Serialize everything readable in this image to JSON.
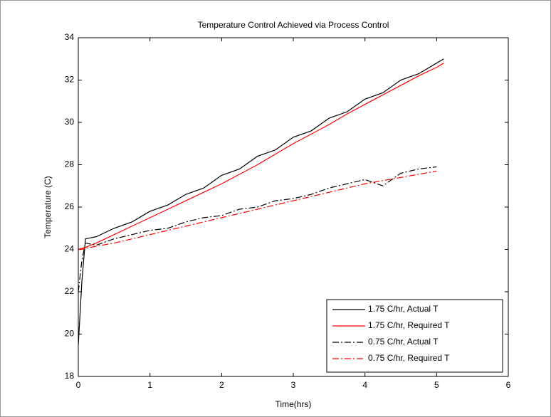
{
  "chart_data": {
    "type": "line",
    "title": "Temperature Control Achieved via Process Control",
    "x_label": "Time(hrs)",
    "y_label": "Temperature (C)",
    "x": [
      0,
      0.05,
      0.1,
      0.25,
      0.5,
      0.75,
      1,
      1.25,
      1.5,
      1.75,
      2,
      2.25,
      2.5,
      2.75,
      3,
      3.25,
      3.5,
      3.75,
      4,
      4.25,
      4.5,
      4.75,
      5,
      5.1
    ],
    "series": [
      {
        "name": "1.75 C/hr, Actual T",
        "color": "#000000",
        "style": "-",
        "values": [
          19.5,
          22.5,
          24.5,
          24.6,
          25.0,
          25.3,
          25.8,
          26.1,
          26.6,
          26.9,
          27.5,
          27.8,
          28.4,
          28.7,
          29.3,
          29.6,
          30.2,
          30.5,
          31.1,
          31.4,
          32.0,
          32.3,
          32.8,
          33.0
        ]
      },
      {
        "name": "1.75 C/hr, Required T",
        "color": "#ff0000",
        "style": "-",
        "values": [
          24.0,
          24.05,
          24.1,
          24.3,
          24.7,
          25.1,
          25.5,
          25.9,
          26.3,
          26.7,
          27.1,
          27.55,
          28.0,
          28.5,
          29.0,
          29.45,
          29.9,
          30.4,
          30.85,
          31.3,
          31.75,
          32.2,
          32.6,
          32.8
        ]
      },
      {
        "name": "0.75 C/hr, Actual T",
        "color": "#000000",
        "style": "-.",
        "values": [
          22.0,
          23.5,
          24.3,
          24.2,
          24.5,
          24.7,
          24.9,
          25.0,
          25.3,
          25.5,
          25.6,
          25.9,
          26.0,
          26.3,
          26.4,
          26.6,
          26.9,
          27.1,
          27.3,
          27.0,
          27.6,
          27.8,
          27.9,
          null
        ]
      },
      {
        "name": "0.75 C/hr, Required T",
        "color": "#ff0000",
        "style": "-.",
        "values": [
          24.0,
          24.0,
          24.05,
          24.15,
          24.3,
          24.5,
          24.7,
          24.9,
          25.1,
          25.3,
          25.5,
          25.7,
          25.9,
          26.1,
          26.3,
          26.5,
          26.7,
          26.9,
          27.1,
          27.25,
          27.4,
          27.55,
          27.7,
          null
        ]
      }
    ],
    "xlim": [
      0,
      6
    ],
    "xticks": [
      0,
      1,
      2,
      3,
      4,
      5,
      6
    ],
    "ylim": [
      18,
      34
    ],
    "yticks": [
      18,
      20,
      22,
      24,
      26,
      28,
      30,
      32,
      34
    ],
    "grid": false,
    "legend": "lower right"
  }
}
